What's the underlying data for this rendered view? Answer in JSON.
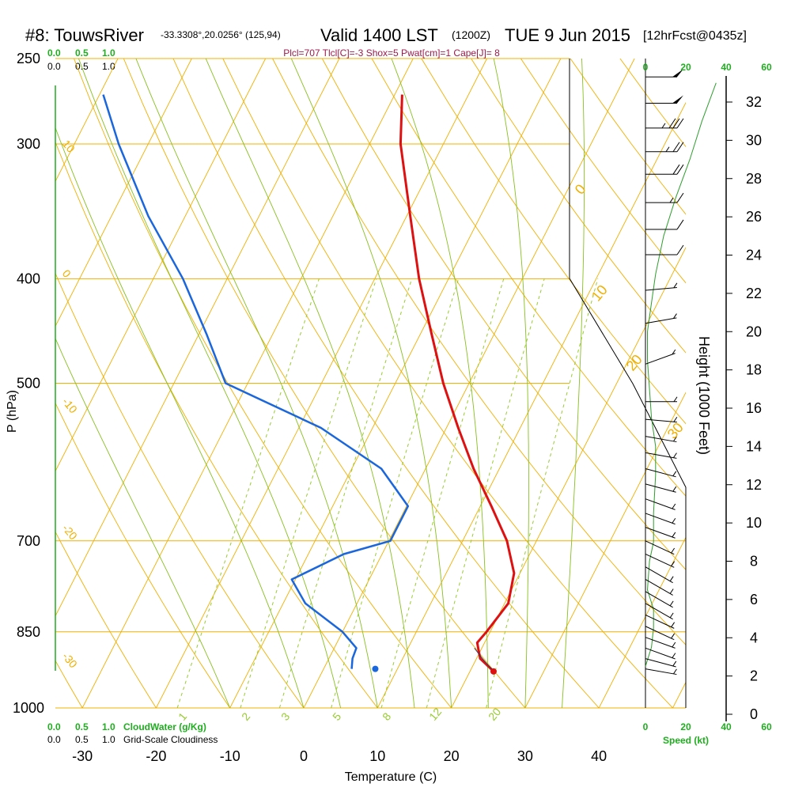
{
  "header": {
    "station": "#8: TouwsRiver",
    "coords": "-33.3308°,20.0256° (125,94)",
    "valid": "Valid 1400 LST",
    "zulu": "(1200Z)",
    "date": "TUE 9 Jun 2015",
    "forecast": "[12hrFcst@0435z]"
  },
  "indices": "Plcl=707 Tlcl[C]=-3 Shox=5 Pwat[cm]=1 Cape[J]= 8",
  "top_scales": {
    "cloudwater_ticks": [
      "0.0",
      "0.5",
      "1.0"
    ],
    "cloudiness_ticks": [
      "0.0",
      "0.5",
      "1.0"
    ]
  },
  "bottom_scales": {
    "cloudwater_ticks": [
      "0.0",
      "0.5",
      "1.0"
    ],
    "cloudwater_label": "CloudWater (g/Kg)",
    "cloudiness_ticks": [
      "0.0",
      "0.5",
      "1.0"
    ],
    "cloudiness_label": "Grid-Scale Cloudiness"
  },
  "speed_scale": {
    "ticks": [
      "0",
      "20",
      "40",
      "60"
    ],
    "label": "Speed (kt)"
  },
  "colors": {
    "temperature": "#dd1111",
    "dewpoint": "#1a66dd",
    "isotherm": "#f0b000",
    "dry_adiabat": "#f0b000",
    "moist_adiabat": "#88c020",
    "mixing_ratio": "#99cc33",
    "wind_speed": "#2e9e2e",
    "green_text": "#1fae1f",
    "index_text": "#9b1b4b"
  },
  "chart_data": {
    "type": "line",
    "chart_kind": "skew-T log-P sounding",
    "xlabel": "Temperature (C)",
    "ylabel": "P (hPa)",
    "y2label": "Height (1000 Feet)",
    "x_ticks": [
      "-30",
      "-20",
      "-10",
      "0",
      "10",
      "20",
      "30",
      "40"
    ],
    "y_ticks": [
      "250",
      "300",
      "400",
      "500",
      "700",
      "850",
      "1000"
    ],
    "height_ticks": [
      "0",
      "2",
      "4",
      "6",
      "8",
      "10",
      "12",
      "14",
      "16",
      "18",
      "20",
      "22",
      "24",
      "26",
      "28",
      "30",
      "32"
    ],
    "mixing_ratio_labels": [
      "1",
      "2",
      "3",
      "5",
      "8",
      "12",
      "20"
    ],
    "dry_adiabat_labels": [
      "0",
      "10",
      "20",
      "30"
    ],
    "left_labels": [
      "10",
      "0",
      "-10",
      "-20",
      "-30"
    ],
    "series": [
      {
        "name": "Temperature",
        "points": [
          {
            "p": 925,
            "t": 23.2
          },
          {
            "p": 900,
            "t": 20.5
          },
          {
            "p": 870,
            "t": 19.0
          },
          {
            "p": 850,
            "t": 19.5
          },
          {
            "p": 800,
            "t": 20.5
          },
          {
            "p": 750,
            "t": 19.2
          },
          {
            "p": 700,
            "t": 16.0
          },
          {
            "p": 650,
            "t": 11.5
          },
          {
            "p": 600,
            "t": 6.5
          },
          {
            "p": 550,
            "t": 1.6
          },
          {
            "p": 500,
            "t": -3.5
          },
          {
            "p": 450,
            "t": -8.5
          },
          {
            "p": 400,
            "t": -14.0
          },
          {
            "p": 350,
            "t": -19.5
          },
          {
            "p": 300,
            "t": -25.8
          },
          {
            "p": 270,
            "t": -29.0
          }
        ]
      },
      {
        "name": "Dewpoint",
        "points": [
          {
            "p": 920,
            "t": 3.8
          },
          {
            "p": 900,
            "t": 3.2
          },
          {
            "p": 880,
            "t": 3.0
          },
          {
            "p": 850,
            "t": 0.0
          },
          {
            "p": 800,
            "t": -7.0
          },
          {
            "p": 760,
            "t": -10.5
          },
          {
            "p": 720,
            "t": -5.2
          },
          {
            "p": 700,
            "t": 0.2
          },
          {
            "p": 650,
            "t": 0.2
          },
          {
            "p": 600,
            "t": -6.0
          },
          {
            "p": 550,
            "t": -17.0
          },
          {
            "p": 500,
            "t": -33.0
          },
          {
            "p": 450,
            "t": -39.0
          },
          {
            "p": 400,
            "t": -46.0
          },
          {
            "p": 350,
            "t": -55.0
          },
          {
            "p": 300,
            "t": -64.0
          },
          {
            "p": 270,
            "t": -69.5
          }
        ]
      }
    ],
    "surface_dewpoint": {
      "p": 920,
      "t": 7.0
    },
    "parcel_trace": [
      {
        "p": 925,
        "t": 23.2
      },
      {
        "p": 900,
        "t": 20.8
      },
      {
        "p": 880,
        "t": 19.0
      }
    ],
    "wind_speed_profile": [
      {
        "height_kft": 2.5,
        "speed_kt": 0
      },
      {
        "height_kft": 3.5,
        "speed_kt": 3
      },
      {
        "height_kft": 4.5,
        "speed_kt": 4
      },
      {
        "height_kft": 5.5,
        "speed_kt": 4
      },
      {
        "height_kft": 6.5,
        "speed_kt": 1
      },
      {
        "height_kft": 8.0,
        "speed_kt": 2
      },
      {
        "height_kft": 9.0,
        "speed_kt": 4
      },
      {
        "height_kft": 10.5,
        "speed_kt": 4
      },
      {
        "height_kft": 12.5,
        "speed_kt": 5
      },
      {
        "height_kft": 14.0,
        "speed_kt": 5
      },
      {
        "height_kft": 15.5,
        "speed_kt": 3
      },
      {
        "height_kft": 17.0,
        "speed_kt": 2
      },
      {
        "height_kft": 18.5,
        "speed_kt": 1
      },
      {
        "height_kft": 20.0,
        "speed_kt": 1
      },
      {
        "height_kft": 21.5,
        "speed_kt": 3
      },
      {
        "height_kft": 23.0,
        "speed_kt": 5
      },
      {
        "height_kft": 25.0,
        "speed_kt": 9
      },
      {
        "height_kft": 27.0,
        "speed_kt": 15
      },
      {
        "height_kft": 29.0,
        "speed_kt": 22
      },
      {
        "height_kft": 31.0,
        "speed_kt": 28
      },
      {
        "height_kft": 33.0,
        "speed_kt": 35
      }
    ],
    "wind_barbs": [
      {
        "p": 920,
        "dir": 280,
        "spd": 5
      },
      {
        "p": 900,
        "dir": 285,
        "spd": 5
      },
      {
        "p": 880,
        "dir": 290,
        "spd": 5
      },
      {
        "p": 860,
        "dir": 290,
        "spd": 5
      },
      {
        "p": 840,
        "dir": 295,
        "spd": 5
      },
      {
        "p": 820,
        "dir": 295,
        "spd": 5
      },
      {
        "p": 800,
        "dir": 300,
        "spd": 5
      },
      {
        "p": 780,
        "dir": 300,
        "spd": 5
      },
      {
        "p": 760,
        "dir": 300,
        "spd": 5
      },
      {
        "p": 740,
        "dir": 300,
        "spd": 5
      },
      {
        "p": 720,
        "dir": 295,
        "spd": 5
      },
      {
        "p": 700,
        "dir": 295,
        "spd": 5
      },
      {
        "p": 680,
        "dir": 290,
        "spd": 5
      },
      {
        "p": 660,
        "dir": 290,
        "spd": 5
      },
      {
        "p": 640,
        "dir": 290,
        "spd": 5
      },
      {
        "p": 620,
        "dir": 285,
        "spd": 5
      },
      {
        "p": 600,
        "dir": 285,
        "spd": 5
      },
      {
        "p": 580,
        "dir": 280,
        "spd": 5
      },
      {
        "p": 560,
        "dir": 280,
        "spd": 5
      },
      {
        "p": 540,
        "dir": 275,
        "spd": 5
      },
      {
        "p": 520,
        "dir": 270,
        "spd": 5
      },
      {
        "p": 480,
        "dir": 250,
        "spd": 5
      },
      {
        "p": 440,
        "dir": 260,
        "spd": 5
      },
      {
        "p": 410,
        "dir": 265,
        "spd": 5
      },
      {
        "p": 380,
        "dir": 270,
        "spd": 10
      },
      {
        "p": 360,
        "dir": 270,
        "spd": 10
      },
      {
        "p": 340,
        "dir": 270,
        "spd": 15
      },
      {
        "p": 320,
        "dir": 270,
        "spd": 20
      },
      {
        "p": 305,
        "dir": 270,
        "spd": 25
      },
      {
        "p": 290,
        "dir": 270,
        "spd": 35
      },
      {
        "p": 275,
        "dir": 270,
        "spd": 50
      },
      {
        "p": 260,
        "dir": 270,
        "spd": 50
      }
    ]
  }
}
